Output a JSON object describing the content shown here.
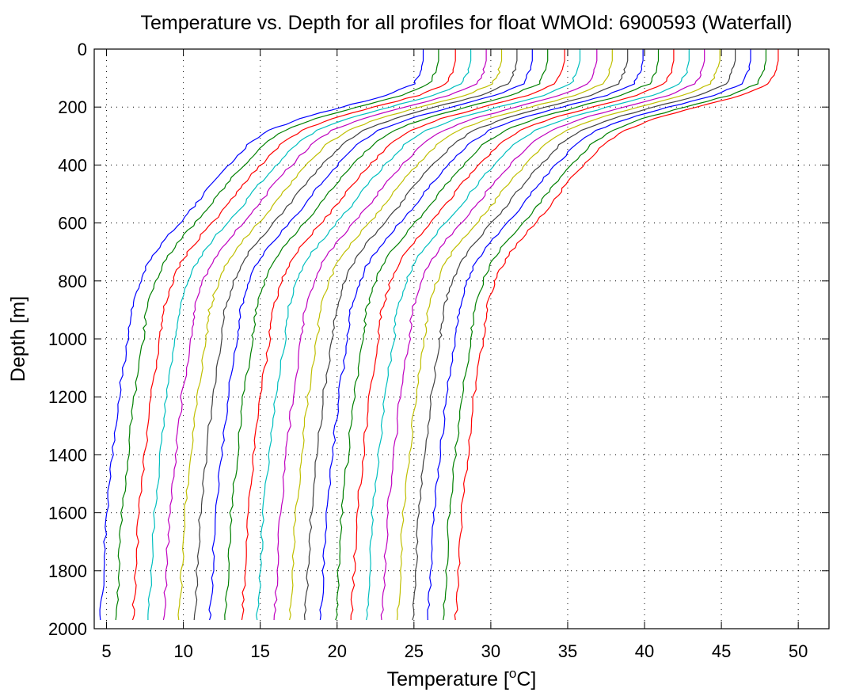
{
  "chart_data": {
    "type": "line",
    "title": "Temperature vs. Depth for all profiles for float WMOId: 6900593 (Waterfall)",
    "xlabel": {
      "prefix": "Temperature [",
      "superscript": "o",
      "suffix": "C]"
    },
    "ylabel": "Depth [m]",
    "xlim": [
      4.2,
      52
    ],
    "ylim": [
      0,
      2000
    ],
    "y_reversed": true,
    "x_ticks": [
      5,
      10,
      15,
      20,
      25,
      30,
      35,
      40,
      45,
      50
    ],
    "y_ticks": [
      0,
      200,
      400,
      600,
      800,
      1000,
      1200,
      1400,
      1600,
      1800,
      2000
    ],
    "grid": true,
    "legend": "none",
    "colors": [
      "#0000ff",
      "#008000",
      "#ff0000",
      "#00bfbf",
      "#bf00bf",
      "#bfbf00",
      "#404040"
    ],
    "waterfall_offset": 1,
    "base_profile": {
      "depth": [
        0,
        40,
        80,
        120,
        160,
        200,
        240,
        280,
        330,
        380,
        430,
        480,
        530,
        580,
        640,
        700,
        750,
        800,
        850,
        900,
        950,
        1000,
        1100,
        1200,
        1300,
        1400,
        1500,
        1600,
        1700,
        1800,
        1900,
        1970
      ],
      "temp": [
        25.6,
        25.6,
        25.4,
        25.0,
        23.2,
        20.3,
        17.6,
        15.6,
        14.2,
        13.3,
        12.4,
        11.6,
        10.9,
        10.1,
        9.1,
        8.2,
        7.6,
        7.2,
        6.9,
        6.6,
        6.5,
        6.4,
        6.1,
        5.8,
        5.6,
        5.4,
        5.2,
        5.0,
        4.9,
        4.8,
        4.7,
        4.6
      ]
    },
    "series": [
      {
        "offset": 0.0,
        "color": "#0000ff"
      },
      {
        "offset": 1.0,
        "color": "#008000"
      },
      {
        "offset": 2.1,
        "color": "#ff0000"
      },
      {
        "offset": 3.1,
        "color": "#00bfbf"
      },
      {
        "offset": 4.1,
        "color": "#bf00bf"
      },
      {
        "offset": 5.1,
        "color": "#bfbf00"
      },
      {
        "offset": 6.1,
        "color": "#404040"
      },
      {
        "offset": 7.1,
        "color": "#0000ff"
      },
      {
        "offset": 8.1,
        "color": "#008000"
      },
      {
        "offset": 9.2,
        "color": "#ff0000"
      },
      {
        "offset": 10.2,
        "color": "#00bfbf"
      },
      {
        "offset": 11.3,
        "color": "#bf00bf"
      },
      {
        "offset": 12.3,
        "color": "#bfbf00"
      },
      {
        "offset": 13.3,
        "color": "#404040"
      },
      {
        "offset": 14.3,
        "color": "#0000ff"
      },
      {
        "offset": 15.3,
        "color": "#008000"
      },
      {
        "offset": 16.3,
        "color": "#ff0000"
      },
      {
        "offset": 17.3,
        "color": "#00bfbf"
      },
      {
        "offset": 18.3,
        "color": "#bf00bf"
      },
      {
        "offset": 19.3,
        "color": "#bfbf00"
      },
      {
        "offset": 20.3,
        "color": "#404040"
      },
      {
        "offset": 21.3,
        "color": "#0000ff"
      },
      {
        "offset": 22.3,
        "color": "#008000"
      },
      {
        "offset": 23.1,
        "color": "#ff0000"
      }
    ]
  }
}
